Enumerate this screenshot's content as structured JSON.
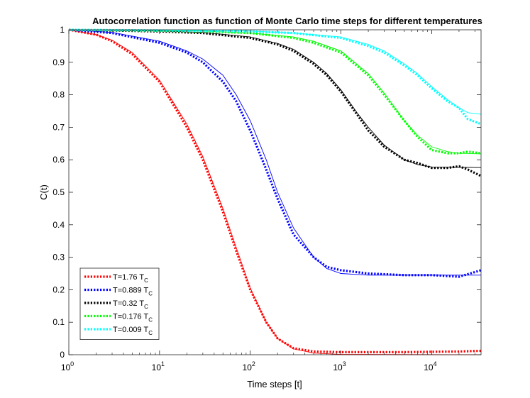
{
  "chart_data": {
    "type": "line",
    "title": "Autocorrelation function as function of Monte Carlo time steps for different temperatures",
    "xlabel": "Time steps [t]",
    "ylabel": "C(t)",
    "xscale": "log",
    "xlim": [
      1,
      35000
    ],
    "ylim": [
      0,
      1
    ],
    "grid": false,
    "legend_position": "bottom-left",
    "x_ticks": [
      {
        "value": 1,
        "base": "10",
        "exp": "0"
      },
      {
        "value": 10,
        "base": "10",
        "exp": "1"
      },
      {
        "value": 100,
        "base": "10",
        "exp": "2"
      },
      {
        "value": 1000,
        "base": "10",
        "exp": "3"
      },
      {
        "value": 10000,
        "base": "10",
        "exp": "4"
      }
    ],
    "y_ticks": [
      {
        "value": 0,
        "label": "0"
      },
      {
        "value": 0.1,
        "label": "0.1"
      },
      {
        "value": 0.2,
        "label": "0.2"
      },
      {
        "value": 0.3,
        "label": "0.3"
      },
      {
        "value": 0.4,
        "label": "0.4"
      },
      {
        "value": 0.5,
        "label": "0.5"
      },
      {
        "value": 0.6,
        "label": "0.6"
      },
      {
        "value": 0.7,
        "label": "0.7"
      },
      {
        "value": 0.8,
        "label": "0.8"
      },
      {
        "value": 0.9,
        "label": "0.9"
      },
      {
        "value": 1,
        "label": "1"
      }
    ],
    "series": [
      {
        "name": "T=1.76 T_C",
        "legend_main": "T=1.76 T",
        "legend_sub": "C",
        "color": "#ff0000",
        "data_points": [
          [
            1,
            1.0
          ],
          [
            2,
            0.985
          ],
          [
            3,
            0.965
          ],
          [
            5,
            0.925
          ],
          [
            10,
            0.84
          ],
          [
            20,
            0.7
          ],
          [
            30,
            0.6
          ],
          [
            50,
            0.44
          ],
          [
            70,
            0.32
          ],
          [
            100,
            0.2
          ],
          [
            150,
            0.1
          ],
          [
            200,
            0.05
          ],
          [
            300,
            0.02
          ],
          [
            500,
            0.01
          ],
          [
            1000,
            0.008
          ],
          [
            2000,
            0.008
          ],
          [
            5000,
            0.008
          ],
          [
            10000,
            0.009
          ],
          [
            20000,
            0.01
          ],
          [
            35000,
            0.012
          ]
        ],
        "fit_points": [
          [
            1,
            1.0
          ],
          [
            2,
            0.985
          ],
          [
            3,
            0.968
          ],
          [
            5,
            0.93
          ],
          [
            10,
            0.845
          ],
          [
            20,
            0.71
          ],
          [
            30,
            0.61
          ],
          [
            50,
            0.45
          ],
          [
            70,
            0.33
          ],
          [
            100,
            0.205
          ],
          [
            150,
            0.1
          ],
          [
            200,
            0.05
          ],
          [
            300,
            0.018
          ],
          [
            500,
            0.005
          ],
          [
            1000,
            0.001
          ],
          [
            35000,
            0.0
          ]
        ]
      },
      {
        "name": "T=0.889 T_C",
        "legend_main": "T=0.889 T",
        "legend_sub": "C",
        "color": "#0000ff",
        "data_points": [
          [
            1,
            1.0
          ],
          [
            3,
            0.99
          ],
          [
            10,
            0.96
          ],
          [
            20,
            0.93
          ],
          [
            30,
            0.9
          ],
          [
            50,
            0.84
          ],
          [
            70,
            0.78
          ],
          [
            100,
            0.69
          ],
          [
            150,
            0.57
          ],
          [
            200,
            0.48
          ],
          [
            300,
            0.37
          ],
          [
            500,
            0.3
          ],
          [
            700,
            0.27
          ],
          [
            1000,
            0.26
          ],
          [
            2000,
            0.25
          ],
          [
            5000,
            0.245
          ],
          [
            10000,
            0.245
          ],
          [
            20000,
            0.24
          ],
          [
            35000,
            0.26
          ]
        ],
        "fit_points": [
          [
            1,
            1.0
          ],
          [
            3,
            0.992
          ],
          [
            10,
            0.965
          ],
          [
            20,
            0.935
          ],
          [
            30,
            0.91
          ],
          [
            50,
            0.86
          ],
          [
            70,
            0.8
          ],
          [
            100,
            0.72
          ],
          [
            150,
            0.6
          ],
          [
            200,
            0.5
          ],
          [
            300,
            0.39
          ],
          [
            500,
            0.3
          ],
          [
            700,
            0.265
          ],
          [
            1000,
            0.25
          ],
          [
            2000,
            0.245
          ],
          [
            35000,
            0.245
          ]
        ]
      },
      {
        "name": "T=0.32 T_C",
        "legend_main": "T=0.32 T",
        "legend_sub": "C",
        "color": "#000000",
        "data_points": [
          [
            1,
            1.0
          ],
          [
            10,
            0.995
          ],
          [
            30,
            0.99
          ],
          [
            100,
            0.975
          ],
          [
            200,
            0.955
          ],
          [
            300,
            0.935
          ],
          [
            500,
            0.895
          ],
          [
            700,
            0.86
          ],
          [
            1000,
            0.81
          ],
          [
            1500,
            0.74
          ],
          [
            2000,
            0.69
          ],
          [
            3000,
            0.64
          ],
          [
            5000,
            0.6
          ],
          [
            7000,
            0.59
          ],
          [
            10000,
            0.575
          ],
          [
            15000,
            0.575
          ],
          [
            20000,
            0.58
          ],
          [
            25000,
            0.57
          ],
          [
            35000,
            0.55
          ]
        ],
        "fit_points": [
          [
            1,
            1.0
          ],
          [
            10,
            0.996
          ],
          [
            30,
            0.992
          ],
          [
            100,
            0.978
          ],
          [
            200,
            0.958
          ],
          [
            300,
            0.94
          ],
          [
            500,
            0.9
          ],
          [
            700,
            0.865
          ],
          [
            1000,
            0.815
          ],
          [
            1500,
            0.745
          ],
          [
            2000,
            0.7
          ],
          [
            3000,
            0.645
          ],
          [
            5000,
            0.6
          ],
          [
            7000,
            0.585
          ],
          [
            10000,
            0.578
          ],
          [
            35000,
            0.576
          ]
        ]
      },
      {
        "name": "T=0.176 T_C",
        "legend_main": "T=0.176 T",
        "legend_sub": "C",
        "color": "#00ff00",
        "data_points": [
          [
            1,
            1.0
          ],
          [
            10,
            0.997
          ],
          [
            30,
            0.995
          ],
          [
            100,
            0.99
          ],
          [
            300,
            0.975
          ],
          [
            500,
            0.96
          ],
          [
            1000,
            0.93
          ],
          [
            2000,
            0.86
          ],
          [
            3000,
            0.8
          ],
          [
            5000,
            0.72
          ],
          [
            7000,
            0.67
          ],
          [
            10000,
            0.63
          ],
          [
            15000,
            0.62
          ],
          [
            20000,
            0.62
          ],
          [
            25000,
            0.625
          ],
          [
            35000,
            0.62
          ]
        ],
        "fit_points": [
          [
            1,
            1.0
          ],
          [
            10,
            0.998
          ],
          [
            30,
            0.996
          ],
          [
            100,
            0.99
          ],
          [
            300,
            0.978
          ],
          [
            500,
            0.965
          ],
          [
            1000,
            0.935
          ],
          [
            2000,
            0.865
          ],
          [
            3000,
            0.805
          ],
          [
            5000,
            0.72
          ],
          [
            7000,
            0.675
          ],
          [
            10000,
            0.64
          ],
          [
            15000,
            0.625
          ],
          [
            20000,
            0.62
          ],
          [
            35000,
            0.618
          ]
        ]
      },
      {
        "name": "T=0.009 T_C",
        "legend_main": "T=0.009 T",
        "legend_sub": "C",
        "color": "#00ffff",
        "data_points": [
          [
            1,
            1.0
          ],
          [
            10,
            0.998
          ],
          [
            100,
            0.995
          ],
          [
            300,
            0.99
          ],
          [
            1000,
            0.975
          ],
          [
            2000,
            0.95
          ],
          [
            3000,
            0.93
          ],
          [
            5000,
            0.89
          ],
          [
            7000,
            0.86
          ],
          [
            10000,
            0.82
          ],
          [
            15000,
            0.78
          ],
          [
            20000,
            0.76
          ],
          [
            25000,
            0.725
          ],
          [
            35000,
            0.71
          ]
        ],
        "fit_points": [
          [
            1,
            1.0
          ],
          [
            10,
            0.999
          ],
          [
            100,
            0.996
          ],
          [
            300,
            0.99
          ],
          [
            1000,
            0.978
          ],
          [
            2000,
            0.955
          ],
          [
            3000,
            0.935
          ],
          [
            5000,
            0.895
          ],
          [
            7000,
            0.865
          ],
          [
            10000,
            0.825
          ],
          [
            15000,
            0.785
          ],
          [
            20000,
            0.76
          ],
          [
            25000,
            0.745
          ],
          [
            35000,
            0.74
          ]
        ]
      }
    ]
  }
}
